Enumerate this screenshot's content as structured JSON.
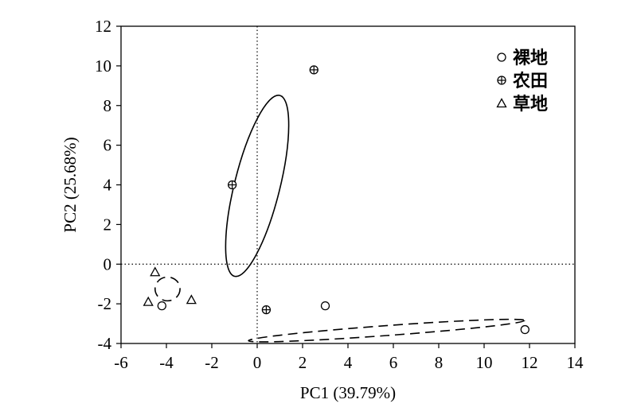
{
  "chart_data": {
    "type": "scatter",
    "title": "",
    "xlabel": "PC1 (39.79%)",
    "ylabel": "PC2 (25.68%)",
    "xlim": [
      -6,
      14
    ],
    "ylim": [
      -4,
      12
    ],
    "xticks": [
      -6,
      -4,
      -2,
      0,
      2,
      4,
      6,
      8,
      10,
      12,
      14
    ],
    "yticks": [
      -4,
      -2,
      0,
      2,
      4,
      6,
      8,
      10,
      12
    ],
    "reference_lines": {
      "x": 0,
      "y": 0,
      "style": "dotted"
    },
    "legend_position": "top-right",
    "series": [
      {
        "name": "裸地",
        "marker": "circle",
        "points": [
          [
            -4.2,
            -2.1
          ],
          [
            3.0,
            -2.1
          ],
          [
            11.8,
            -3.3
          ]
        ],
        "ellipse": {
          "cx": 5.7,
          "cy": -3.35,
          "rx": 6.1,
          "ry": 0.25,
          "angle_deg": -4.2,
          "style": "dashed"
        }
      },
      {
        "name": "农田",
        "marker": "circle-plus",
        "points": [
          [
            -1.1,
            4.0
          ],
          [
            2.5,
            9.8
          ],
          [
            0.4,
            -2.3
          ]
        ],
        "ellipse": {
          "cx": 0.0,
          "cy": 3.95,
          "rx": 1.0,
          "ry": 4.7,
          "angle_deg": 14,
          "style": "solid"
        }
      },
      {
        "name": "草地",
        "marker": "triangle",
        "points": [
          [
            -4.5,
            -0.4
          ],
          [
            -4.8,
            -1.9
          ],
          [
            -2.9,
            -1.8
          ]
        ],
        "ellipse": {
          "cx": -3.95,
          "cy": -1.25,
          "rx": 0.55,
          "ry": 0.6,
          "angle_deg": 0,
          "style": "dashed"
        }
      }
    ]
  }
}
